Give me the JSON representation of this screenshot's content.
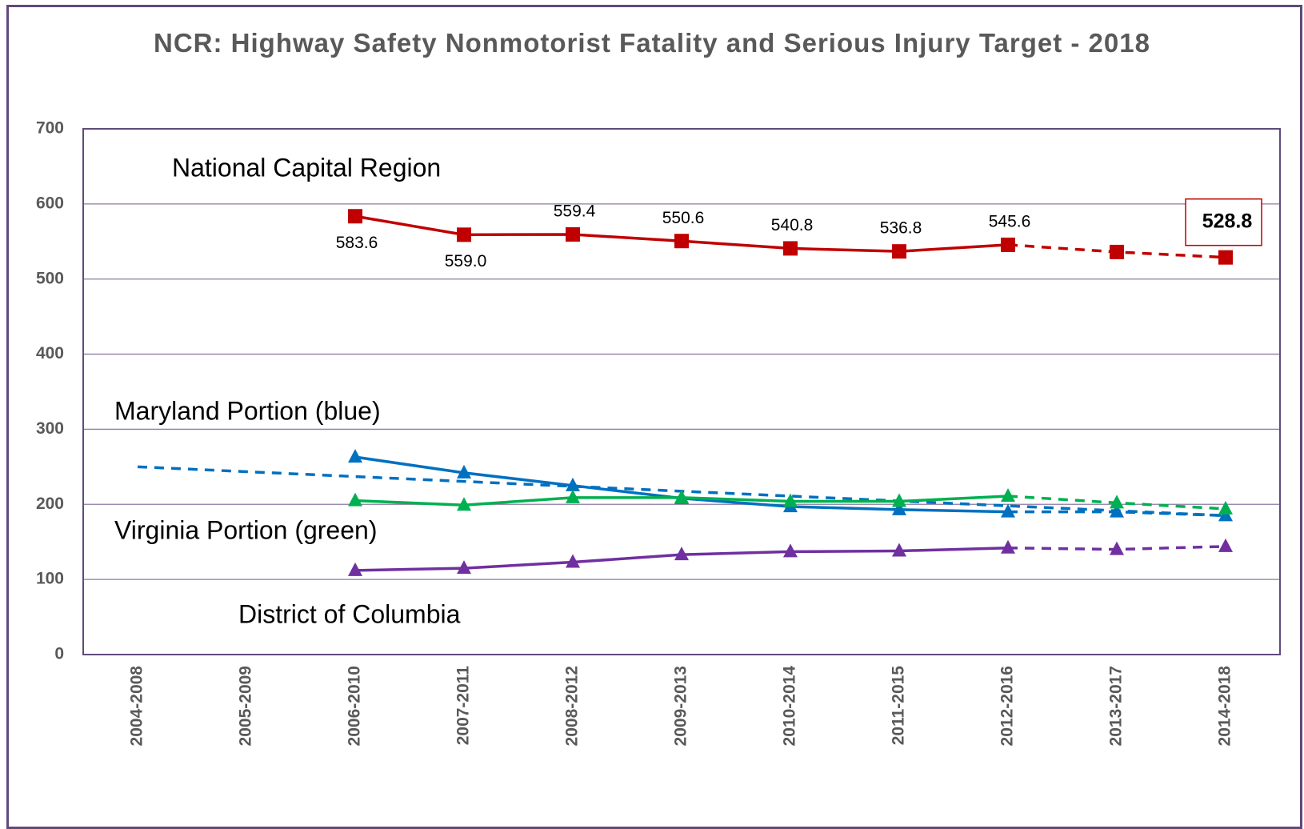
{
  "chart_data": {
    "type": "line",
    "title": "NCR: Highway Safety Nonmotorist Fatality and Serious Injury Target - 2018",
    "categories": [
      "2004-2008",
      "2005-2009",
      "2006-2010",
      "2007-2011",
      "2008-2012",
      "2009-2013",
      "2010-2014",
      "2011-2015",
      "2012-2016",
      "2013-2017",
      "2014-2018"
    ],
    "ylim": [
      0,
      700
    ],
    "yticks": [
      0,
      100,
      200,
      300,
      400,
      500,
      600,
      700
    ],
    "grid": true,
    "series": [
      {
        "name": "National Capital Region",
        "color": "#c00000",
        "marker": "square",
        "dash_from": 8,
        "values": [
          null,
          null,
          583.6,
          559.0,
          559.4,
          550.6,
          540.8,
          536.8,
          545.6,
          536,
          528.8
        ],
        "value_labels": [
          null,
          null,
          "583.6",
          "559.0",
          "559.4",
          "550.6",
          "540.8",
          "536.8",
          "545.6",
          null,
          "528.8"
        ]
      },
      {
        "name": "Maryland Portion (blue)",
        "color": "#0070c0",
        "marker": "triangle",
        "dash_from": 8,
        "values": [
          null,
          null,
          263,
          242,
          225,
          208,
          197,
          193,
          190,
          190,
          185
        ]
      },
      {
        "color": "#0070c0",
        "dash_from": 0,
        "values": [
          250,
          243.5,
          237,
          230.5,
          224,
          217.5,
          211,
          204.5,
          198,
          191.5,
          185
        ]
      },
      {
        "name": "Virginia Portion (green)",
        "color": "#00b050",
        "marker": "triangle",
        "dash_from": 8,
        "values": [
          null,
          null,
          205,
          199,
          209,
          209,
          204,
          204,
          211,
          202,
          194
        ]
      },
      {
        "name": "District of Columbia",
        "color": "#7030a0",
        "marker": "triangle",
        "dash_from": 8,
        "values": [
          null,
          null,
          112,
          115,
          123,
          133,
          137,
          138,
          142,
          140,
          144
        ]
      }
    ]
  }
}
